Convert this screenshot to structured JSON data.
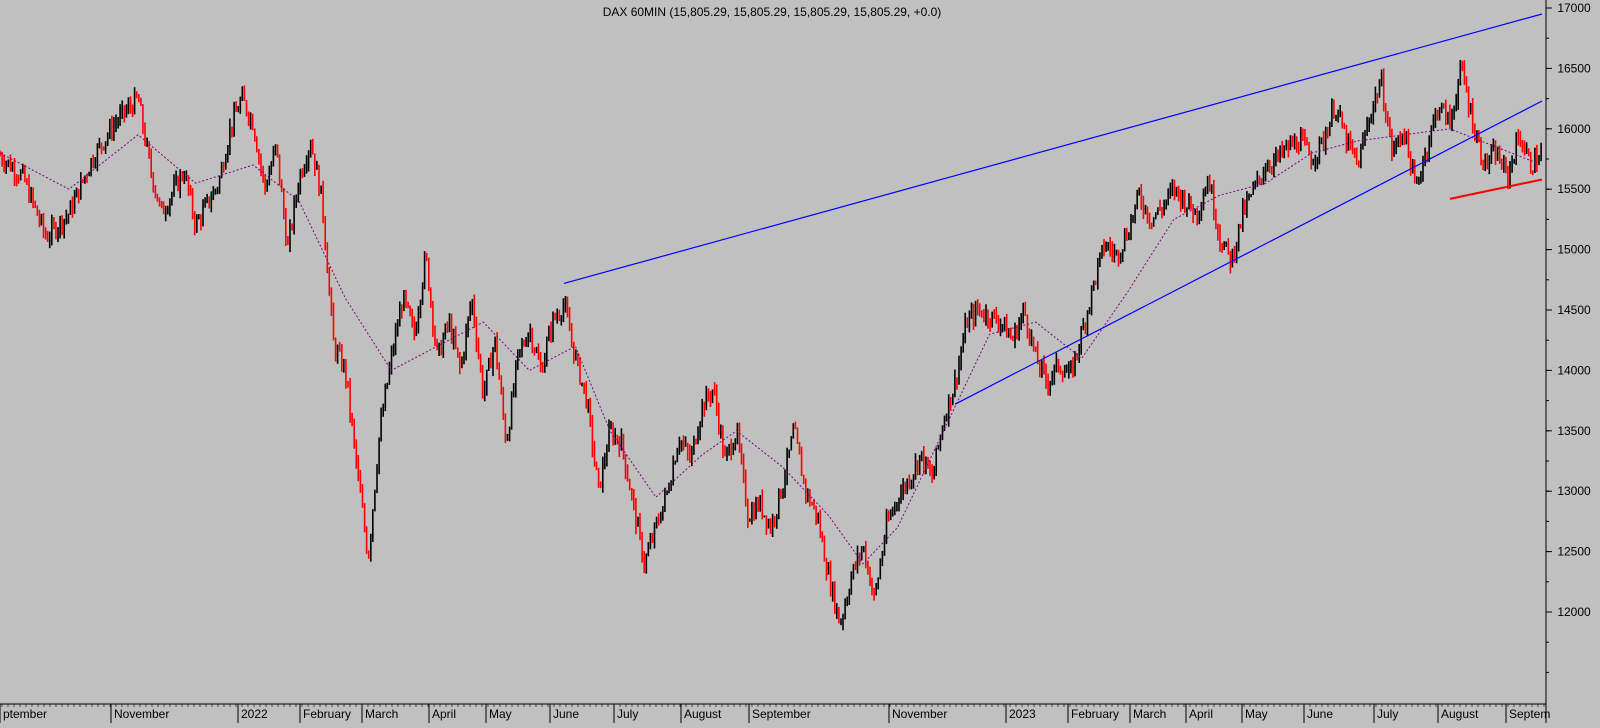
{
  "chart_data": {
    "type": "candlestick",
    "title": "DAX 60MIN (15,805.29, 15,805.29, 15,805.29, 15,805.29, +0.0)",
    "symbol": "DAX",
    "interval": "60MIN",
    "ylim": [
      11500,
      17000
    ],
    "y_ticks": [
      "12000",
      "12500",
      "13000",
      "13500",
      "14000",
      "14500",
      "15000",
      "15500",
      "16000",
      "16500",
      "17000"
    ],
    "x_ticks": [
      "ptember",
      "November",
      "2022",
      "February",
      "March",
      "April",
      "May",
      "June",
      "July",
      "August",
      "September",
      "November",
      "2023",
      "February",
      "March",
      "April",
      "May",
      "June",
      "July",
      "August",
      "Septem"
    ],
    "price_path": [
      [
        0,
        15780
      ],
      [
        2,
        15600
      ],
      [
        4,
        15100
      ],
      [
        6,
        15300
      ],
      [
        8,
        15750
      ],
      [
        10,
        16050
      ],
      [
        11,
        16150
      ],
      [
        12,
        16250
      ],
      [
        13,
        15700
      ],
      [
        14,
        15300
      ],
      [
        16,
        15650
      ],
      [
        17,
        15200
      ],
      [
        19,
        15550
      ],
      [
        20,
        16000
      ],
      [
        21,
        16250
      ],
      [
        22,
        16050
      ],
      [
        23,
        15500
      ],
      [
        24,
        15850
      ],
      [
        25,
        15000
      ],
      [
        26,
        15600
      ],
      [
        27,
        15900
      ],
      [
        28,
        15400
      ],
      [
        29,
        14200
      ],
      [
        30,
        14000
      ],
      [
        31,
        13200
      ],
      [
        32,
        12450
      ],
      [
        33,
        13500
      ],
      [
        34,
        14100
      ],
      [
        35,
        14600
      ],
      [
        36,
        14300
      ],
      [
        37,
        14950
      ],
      [
        38,
        14100
      ],
      [
        39,
        14400
      ],
      [
        40,
        14000
      ],
      [
        41,
        14600
      ],
      [
        42,
        13800
      ],
      [
        43,
        14250
      ],
      [
        44,
        13400
      ],
      [
        45,
        14100
      ],
      [
        46,
        14350
      ],
      [
        47,
        14000
      ],
      [
        48,
        14400
      ],
      [
        49,
        14550
      ],
      [
        50,
        14100
      ],
      [
        51,
        13750
      ],
      [
        52,
        13000
      ],
      [
        53,
        13500
      ],
      [
        54,
        13400
      ],
      [
        55,
        12900
      ],
      [
        56,
        12400
      ],
      [
        57,
        12700
      ],
      [
        58,
        13000
      ],
      [
        59,
        13450
      ],
      [
        60,
        13250
      ],
      [
        61,
        13700
      ],
      [
        62,
        13850
      ],
      [
        63,
        13250
      ],
      [
        64,
        13500
      ],
      [
        65,
        12800
      ],
      [
        66,
        12900
      ],
      [
        67,
        12700
      ],
      [
        68,
        13050
      ],
      [
        69,
        13500
      ],
      [
        70,
        13000
      ],
      [
        71,
        12800
      ],
      [
        72,
        12300
      ],
      [
        73,
        11900
      ],
      [
        74,
        12300
      ],
      [
        75,
        12550
      ],
      [
        76,
        12100
      ],
      [
        77,
        12700
      ],
      [
        78,
        12950
      ],
      [
        79,
        13100
      ],
      [
        80,
        13300
      ],
      [
        81,
        13100
      ],
      [
        82,
        13600
      ],
      [
        83,
        13900
      ],
      [
        84,
        14400
      ],
      [
        85,
        14500
      ],
      [
        86,
        14450
      ],
      [
        87,
        14400
      ],
      [
        88,
        14250
      ],
      [
        89,
        14500
      ],
      [
        90,
        14100
      ],
      [
        91,
        13900
      ],
      [
        92,
        14050
      ],
      [
        93,
        13950
      ],
      [
        94,
        14300
      ],
      [
        95,
        14700
      ],
      [
        96,
        15050
      ],
      [
        97,
        14950
      ],
      [
        98,
        15150
      ],
      [
        99,
        15450
      ],
      [
        100,
        15250
      ],
      [
        101,
        15350
      ],
      [
        102,
        15500
      ],
      [
        103,
        15400
      ],
      [
        104,
        15300
      ],
      [
        105,
        15600
      ],
      [
        106,
        15100
      ],
      [
        107,
        14900
      ],
      [
        108,
        15300
      ],
      [
        109,
        15500
      ],
      [
        110,
        15700
      ],
      [
        111,
        15750
      ],
      [
        112,
        15850
      ],
      [
        113,
        15900
      ],
      [
        114,
        15750
      ],
      [
        115,
        15900
      ],
      [
        116,
        16200
      ],
      [
        117,
        15900
      ],
      [
        118,
        15700
      ],
      [
        119,
        16100
      ],
      [
        120,
        16400
      ],
      [
        121,
        15800
      ],
      [
        122,
        16000
      ],
      [
        123,
        15500
      ],
      [
        124,
        15850
      ],
      [
        125,
        16200
      ],
      [
        126,
        16050
      ],
      [
        127,
        16500
      ],
      [
        128,
        16050
      ],
      [
        129,
        15700
      ],
      [
        130,
        15800
      ],
      [
        131,
        15600
      ],
      [
        132,
        15950
      ],
      [
        133,
        15700
      ],
      [
        134,
        15800
      ]
    ],
    "moving_average": [
      [
        0,
        15800
      ],
      [
        6,
        15500
      ],
      [
        12,
        15950
      ],
      [
        17,
        15550
      ],
      [
        22,
        15700
      ],
      [
        26,
        15400
      ],
      [
        30,
        14600
      ],
      [
        34,
        14000
      ],
      [
        38,
        14200
      ],
      [
        42,
        14400
      ],
      [
        46,
        14000
      ],
      [
        50,
        14200
      ],
      [
        53,
        13500
      ],
      [
        57,
        12950
      ],
      [
        61,
        13300
      ],
      [
        64,
        13500
      ],
      [
        68,
        13200
      ],
      [
        72,
        12800
      ],
      [
        75,
        12400
      ],
      [
        78,
        12700
      ],
      [
        82,
        13500
      ],
      [
        86,
        14300
      ],
      [
        90,
        14400
      ],
      [
        94,
        14100
      ],
      [
        98,
        14650
      ],
      [
        102,
        15250
      ],
      [
        106,
        15450
      ],
      [
        110,
        15550
      ],
      [
        114,
        15800
      ],
      [
        118,
        15900
      ],
      [
        122,
        15950
      ],
      [
        126,
        16000
      ],
      [
        130,
        15850
      ],
      [
        134,
        15700
      ]
    ],
    "trendlines": [
      {
        "color": "#0000ff",
        "from": [
          49,
          14720
        ],
        "to": [
          134,
          16950
        ]
      },
      {
        "color": "#0000ff",
        "from": [
          83,
          13720
        ],
        "to": [
          134,
          16230
        ]
      },
      {
        "color": "#ff0000",
        "from": [
          126,
          15420
        ],
        "to": [
          134,
          15580
        ]
      }
    ],
    "colors": {
      "background": "#c0c0c0",
      "up_candle": "#000000",
      "down_candle": "#ff0000",
      "moving_average": "#800080",
      "trendline": "#0000ff",
      "support_line": "#ff0000"
    }
  }
}
